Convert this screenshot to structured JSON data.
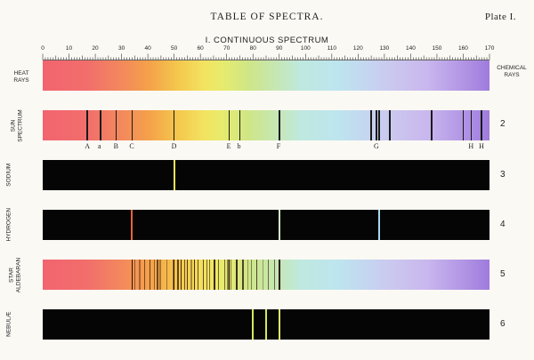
{
  "title": "TABLE OF SPECTRA.",
  "plate": "Plate I.",
  "subtitle": "I. CONTINUOUS SPECTRUM",
  "scale": {
    "min": 0,
    "max": 170,
    "labels": [
      "0",
      "10",
      "20",
      "30",
      "40",
      "50",
      "60",
      "70",
      "80",
      "90",
      "100",
      "110",
      "120",
      "130",
      "140",
      "150",
      "160",
      "170"
    ]
  },
  "side_labels": {
    "heat_rays": "HEAT\nRAYS",
    "chemical_rays": "CHEMICAL\nRAYS"
  },
  "spectra": [
    {
      "label": "SUN\nSPECTRUM",
      "number": "2"
    },
    {
      "label": "SODIUM",
      "number": "3"
    },
    {
      "label": "HYDROGEN",
      "number": "4"
    },
    {
      "label": "STAR\nALDEBARAN",
      "number": "5"
    },
    {
      "label": "NEBULÆ",
      "number": "6"
    }
  ],
  "fraunhofer_lines": [
    {
      "label": "A",
      "pos": 17
    },
    {
      "label": "a",
      "pos": 22
    },
    {
      "label": "B",
      "pos": 28
    },
    {
      "label": "C",
      "pos": 34
    },
    {
      "label": "D",
      "pos": 50
    },
    {
      "label": "E",
      "pos": 71
    },
    {
      "label": "b",
      "pos": 75
    },
    {
      "label": "F",
      "pos": 90
    },
    {
      "label": "G",
      "pos": 127
    },
    {
      "label": "H",
      "pos": 163
    },
    {
      "label": "H",
      "pos": 167
    }
  ],
  "sun_extra_lines": [
    125,
    128,
    132,
    148,
    160
  ],
  "sodium_lines": [
    {
      "pos": 50,
      "color": "#f2e85a"
    }
  ],
  "hydrogen_lines": [
    {
      "pos": 34,
      "color": "#e8623a"
    },
    {
      "pos": 90,
      "color": "#d8f0c8"
    },
    {
      "pos": 128,
      "color": "#a8d8f0"
    }
  ],
  "nebulae_lines": [
    {
      "pos": 80,
      "color": "#d8e85a"
    },
    {
      "pos": 85,
      "color": "#d8e85a"
    },
    {
      "pos": 90,
      "color": "#e0ec70"
    }
  ]
}
